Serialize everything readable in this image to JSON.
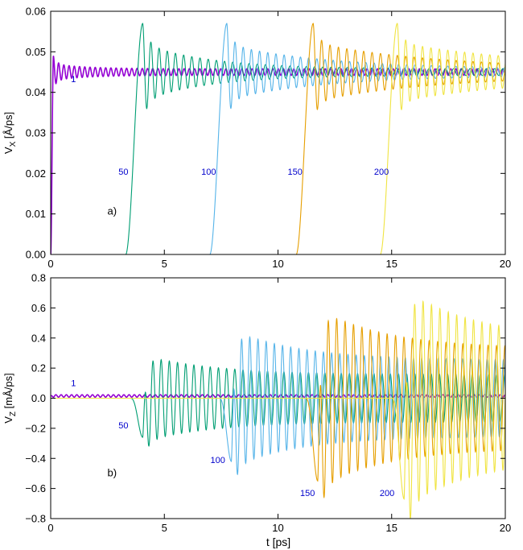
{
  "colors": {
    "1": "#9400d3",
    "50": "#009e73",
    "100": "#56b4e9",
    "150": "#e69f00",
    "200": "#f0e442",
    "label": "#0000cc",
    "axis": "#000000",
    "background": "#ffffff"
  },
  "xlabel": "t [ps]",
  "chart_data": [
    {
      "type": "line",
      "panel_label": "a)",
      "ylabel": "V",
      "ylabel_sub": "X",
      "ylabel_unit": " [Å/ps]",
      "xlim": [
        0,
        20
      ],
      "ylim": [
        0,
        0.06
      ],
      "xticks": [
        "0",
        "5",
        "10",
        "15",
        "20"
      ],
      "yticks": [
        "0.00",
        "0.01",
        "0.02",
        "0.03",
        "0.04",
        "0.05",
        "0.06"
      ],
      "series": [
        {
          "name": "1",
          "start": 0,
          "peak": 0.049,
          "steady": 0.045,
          "amp": 0.0012,
          "decay": 1.5,
          "period": 0.23,
          "growth": 0
        },
        {
          "name": "50",
          "start": 3.3,
          "peak": 0.057,
          "steady": 0.045,
          "amp": 0.0062,
          "decay": 3.0,
          "period": 0.36,
          "growth": 0
        },
        {
          "name": "100",
          "start": 7.0,
          "peak": 0.057,
          "steady": 0.045,
          "amp": 0.006,
          "decay": 4.5,
          "period": 0.36,
          "growth": 0
        },
        {
          "name": "150",
          "start": 10.8,
          "peak": 0.057,
          "steady": 0.045,
          "amp": 0.0065,
          "decay": 5.5,
          "period": 0.37,
          "growth": 0
        },
        {
          "name": "200",
          "start": 14.5,
          "peak": 0.057,
          "steady": 0.045,
          "amp": 0.0065,
          "decay": 6.5,
          "period": 0.37,
          "growth": 0
        }
      ],
      "annotations": [
        {
          "text": "1",
          "x": 1.0,
          "y": 0.0425
        },
        {
          "text": "50",
          "x": 3.2,
          "y": 0.0197
        },
        {
          "text": "100",
          "x": 6.95,
          "y": 0.0197
        },
        {
          "text": "150",
          "x": 10.75,
          "y": 0.0197
        },
        {
          "text": "200",
          "x": 14.55,
          "y": 0.0197
        }
      ],
      "panel_label_pos": {
        "x": 2.7,
        "y": 0.0098
      }
    },
    {
      "type": "line",
      "panel_label": "b)",
      "ylabel": "V",
      "ylabel_sub": "Z",
      "ylabel_unit": " [mÅ/ps]",
      "xlim": [
        0,
        20
      ],
      "ylim": [
        -0.8,
        0.8
      ],
      "xticks": [
        "0",
        "5",
        "10",
        "15",
        "20"
      ],
      "yticks": [
        "−0.8",
        "−0.6",
        "−0.4",
        "−0.2",
        "0.0",
        "0.2",
        "0.4",
        "0.6",
        "0.8"
      ],
      "series": [
        {
          "name": "1",
          "start": 0,
          "base": 0.015,
          "dip": 0,
          "amp": 0.008,
          "period": 0.23,
          "growth": 0
        },
        {
          "name": "50",
          "start": 3.5,
          "base": 0,
          "dip": -0.26,
          "amp": 0.29,
          "period": 0.36,
          "growth": -0.01
        },
        {
          "name": "100",
          "start": 7.4,
          "base": 0,
          "dip": -0.42,
          "amp": 0.46,
          "period": 0.36,
          "growth": -0.015
        },
        {
          "name": "150",
          "start": 11.2,
          "base": 0,
          "dip": -0.55,
          "amp": 0.6,
          "period": 0.37,
          "growth": 0
        },
        {
          "name": "200",
          "start": 15.0,
          "base": 0,
          "dip": -0.67,
          "amp": 0.73,
          "period": 0.37,
          "growth": -0.02
        }
      ],
      "annotations": [
        {
          "text": "1",
          "x": 1.0,
          "y": 0.08
        },
        {
          "text": "50",
          "x": 3.2,
          "y": -0.2
        },
        {
          "text": "100",
          "x": 7.35,
          "y": -0.43
        },
        {
          "text": "150",
          "x": 11.3,
          "y": -0.65
        },
        {
          "text": "200",
          "x": 14.8,
          "y": -0.65
        }
      ],
      "panel_label_pos": {
        "x": 2.7,
        "y": -0.52
      }
    }
  ]
}
